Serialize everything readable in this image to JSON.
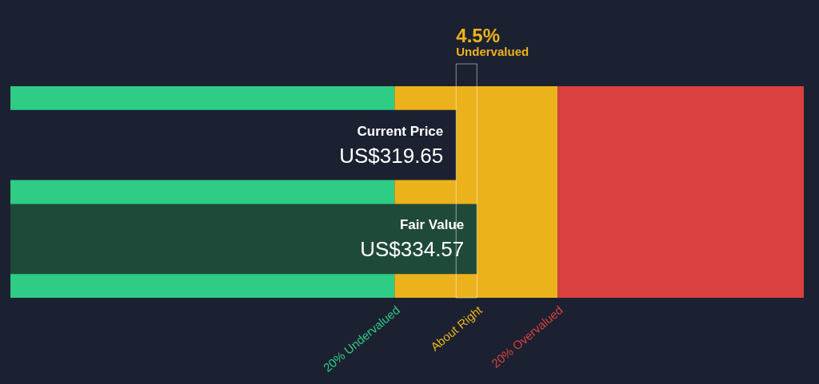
{
  "chart_data": {
    "type": "bar",
    "orientation": "horizontal",
    "categories": [
      "Current Price",
      "Fair Value"
    ],
    "values": [
      319.65,
      334.57
    ],
    "colors": [
      "#1b2130",
      "#1f4a3a"
    ],
    "value_labels": [
      "US$319.65",
      "US$334.57"
    ],
    "xlim": [
      0,
      569
    ],
    "tick_labels": false,
    "annotations": [
      "4.5%",
      "Undervalued"
    ],
    "bands": [
      {
        "axis": "x",
        "from": 0,
        "to": 275.5,
        "label": "20% Undervalued",
        "color": "#2ecc85"
      },
      {
        "axis": "x",
        "from": 275.5,
        "to": 392.5,
        "label": "About Right",
        "color": "#ecb21c"
      },
      {
        "axis": "x",
        "from": 392.5,
        "to": 569,
        "label": "20% Overvalued",
        "color": "#d9403f"
      }
    ]
  }
}
